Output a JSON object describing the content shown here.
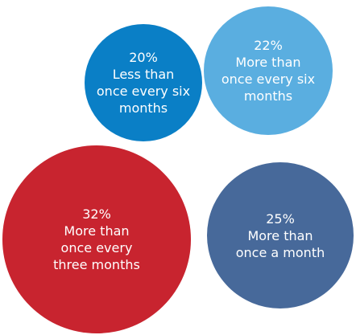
{
  "chart_data": {
    "type": "bubble",
    "categories": [
      [
        "Less than",
        "once every six",
        "months"
      ],
      [
        "More than",
        "once every six",
        "months"
      ],
      [
        "More than",
        "once every",
        "three months"
      ],
      [
        "More than",
        "once a month"
      ]
    ],
    "values": [
      20,
      22,
      32,
      25
    ],
    "value_labels": [
      "20%",
      "22%",
      "32%",
      "25%"
    ],
    "colors": [
      "#0a7fc6",
      "#5aaee0",
      "#c8242f",
      "#47699a"
    ]
  }
}
